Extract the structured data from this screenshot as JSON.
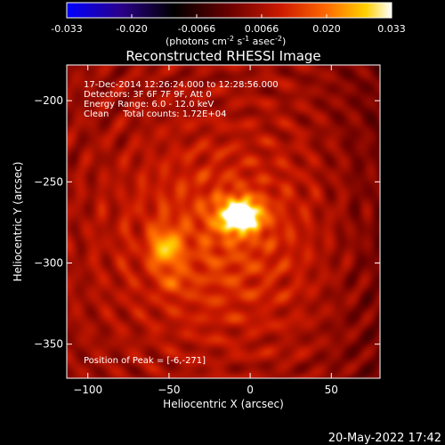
{
  "colorbar": {
    "ticks": [
      "-0.033",
      "-0.020",
      "-0.0066",
      "0.0066",
      "0.020",
      "0.033"
    ],
    "unit_main": "(photons cm",
    "unit_exp1": "-2",
    "unit_s": " s",
    "unit_exp2": "-1",
    "unit_asec": " asec",
    "unit_exp3": "-2",
    "unit_close": ")"
  },
  "title": "Reconstructed RHESSI Image",
  "annotations": {
    "line1": "17-Dec-2014 12:26:24.000 to 12:28:56.000",
    "line2": "Detectors: 3F 6F 7F 9F, Att 0",
    "line3": "Energy Range: 6.0 - 12.0 keV",
    "line4": "Clean     Total counts: 1.72E+04",
    "peak": "Position of Peak = [-6,-271]"
  },
  "footer": {
    "timestamp": "20-May-2022 17:42"
  },
  "chart_data": {
    "type": "heatmap",
    "title": "Reconstructed RHESSI Image",
    "xlabel": "Heliocentric X (arcsec)",
    "ylabel": "Heliocentric Y (arcsec)",
    "xlim": [
      -113,
      80
    ],
    "ylim": [
      -371,
      -178
    ],
    "x_ticks": [
      -100,
      -50,
      0,
      50
    ],
    "y_ticks": [
      -200,
      -250,
      -300,
      -350
    ],
    "x_tick_labels": [
      "−100",
      "−50",
      "0",
      "50"
    ],
    "y_tick_labels": [
      "−200",
      "−250",
      "−300",
      "−350"
    ],
    "color_range": [
      -0.033,
      0.033
    ],
    "colormap": [
      "#0000ff",
      "#2a0088",
      "#000000",
      "#6a0000",
      "#cc1a00",
      "#ff6a00",
      "#ffd000",
      "#ffffff"
    ],
    "sources": [
      {
        "name": "peak",
        "x": -6,
        "y": -271,
        "sx": 9,
        "sy": 7,
        "amp": 0.033
      },
      {
        "x": -52,
        "y": -291,
        "sx": 6,
        "sy": 8,
        "amp": 0.017
      },
      {
        "x": -47,
        "y": -312,
        "sx": 4,
        "sy": 4,
        "amp": 0.009
      },
      {
        "x": -20,
        "y": -285,
        "sx": 45,
        "sy": 45,
        "amp": 0.01
      }
    ]
  }
}
